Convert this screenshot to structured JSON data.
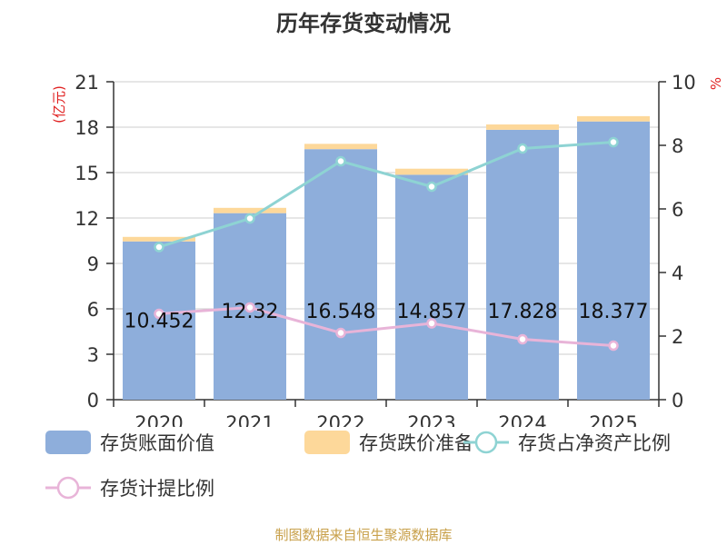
{
  "title": "历年存货变动情况",
  "source": "制图数据来自恒生聚源数据库",
  "chart_data": {
    "type": "bar",
    "categories": [
      "2020",
      "2021",
      "2022",
      "2023",
      "2024",
      "2025"
    ],
    "y_left": {
      "label": "(亿元)",
      "ticks": [
        0,
        3,
        6,
        9,
        12,
        15,
        18,
        21
      ],
      "range": [
        0,
        21
      ]
    },
    "y_right": {
      "label": "%",
      "ticks": [
        0,
        2,
        4,
        6,
        8,
        10
      ],
      "range": [
        0,
        10
      ]
    },
    "grid": true,
    "legend_position": "bottom",
    "series": [
      {
        "name": "存货账面价值",
        "type": "bar",
        "axis": "left",
        "stack": "total",
        "color": "#8eaedb",
        "values": [
          10.452,
          12.32,
          16.548,
          14.857,
          17.828,
          18.377
        ],
        "data_labels": [
          "10.452",
          "12.32",
          "16.548",
          "14.857",
          "17.828",
          "18.377"
        ]
      },
      {
        "name": "存货跌价准备",
        "type": "bar",
        "axis": "left",
        "stack": "total",
        "color": "#fdd89a",
        "values": [
          0.3,
          0.35,
          0.35,
          0.4,
          0.35,
          0.35
        ]
      },
      {
        "name": "存货占净资产比例",
        "type": "line",
        "axis": "right",
        "color": "#8ed3d3",
        "values": [
          4.8,
          5.7,
          7.5,
          6.7,
          7.9,
          8.1
        ]
      },
      {
        "name": "存货计提比例",
        "type": "line",
        "axis": "right",
        "color": "#e8b4d8",
        "values": [
          2.7,
          2.9,
          2.1,
          2.4,
          1.9,
          1.7
        ]
      }
    ]
  }
}
